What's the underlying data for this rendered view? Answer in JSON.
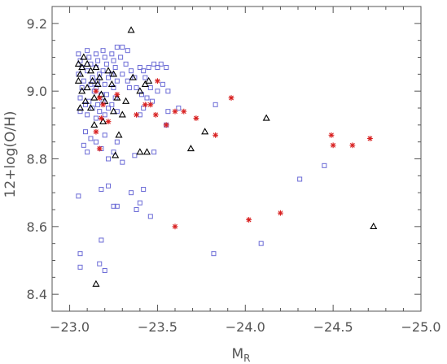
{
  "chart_data": {
    "type": "scatter",
    "xlabel": "M",
    "xlabel_sub": "R",
    "ylabel": "12+log(O/H)",
    "xlim": [
      -22.9,
      -25.0
    ],
    "ylim": [
      8.35,
      9.25
    ],
    "x_ticks": [
      -23.0,
      -23.5,
      -24.0,
      -24.5,
      -25.0
    ],
    "x_tick_labels": [
      "−23.0",
      "−23.5",
      "−24.0",
      "−24.5",
      "−25.0"
    ],
    "y_ticks": [
      8.4,
      8.6,
      8.8,
      9.0,
      9.2
    ],
    "y_tick_labels": [
      "8.4",
      "8.6",
      "8.8",
      "9.0",
      "9.2"
    ],
    "grid": false,
    "series": [
      {
        "marker": "square",
        "color": "#6b6bd6",
        "points": [
          [
            -23.05,
            9.11
          ],
          [
            -23.06,
            9.09
          ],
          [
            -23.07,
            9.07
          ],
          [
            -23.05,
            9.05
          ],
          [
            -23.08,
            9.03
          ],
          [
            -23.07,
            9.01
          ],
          [
            -23.06,
            8.98
          ],
          [
            -23.09,
            8.96
          ],
          [
            -23.06,
            8.94
          ],
          [
            -23.1,
            9.12
          ],
          [
            -23.11,
            9.1
          ],
          [
            -23.12,
            9.08
          ],
          [
            -23.1,
            9.06
          ],
          [
            -23.13,
            9.04
          ],
          [
            -23.12,
            9.02
          ],
          [
            -23.14,
            9.0
          ],
          [
            -23.11,
            8.97
          ],
          [
            -23.13,
            8.95
          ],
          [
            -23.1,
            8.93
          ],
          [
            -23.15,
            9.11
          ],
          [
            -23.16,
            9.09
          ],
          [
            -23.15,
            9.07
          ],
          [
            -23.17,
            9.05
          ],
          [
            -23.16,
            9.03
          ],
          [
            -23.15,
            9.01
          ],
          [
            -23.18,
            8.99
          ],
          [
            -23.16,
            8.96
          ],
          [
            -23.17,
            8.94
          ],
          [
            -23.15,
            8.92
          ],
          [
            -23.19,
            9.12
          ],
          [
            -23.2,
            9.1
          ],
          [
            -23.21,
            9.08
          ],
          [
            -23.19,
            9.06
          ],
          [
            -23.22,
            9.04
          ],
          [
            -23.2,
            9.02
          ],
          [
            -23.21,
            8.99
          ],
          [
            -23.19,
            8.97
          ],
          [
            -23.22,
            8.95
          ],
          [
            -23.2,
            8.93
          ],
          [
            -23.24,
            9.11
          ],
          [
            -23.25,
            9.09
          ],
          [
            -23.26,
            9.07
          ],
          [
            -23.24,
            9.05
          ],
          [
            -23.27,
            9.03
          ],
          [
            -23.25,
            9.01
          ],
          [
            -23.26,
            8.98
          ],
          [
            -23.24,
            8.96
          ],
          [
            -23.27,
            8.94
          ],
          [
            -23.27,
            9.13
          ],
          [
            -23.3,
            9.13
          ],
          [
            -23.33,
            9.12
          ],
          [
            -23.29,
            9.1
          ],
          [
            -23.32,
            9.08
          ],
          [
            -23.3,
            9.05
          ],
          [
            -23.33,
            9.03
          ],
          [
            -23.35,
            9.06
          ],
          [
            -23.37,
            9.04
          ],
          [
            -23.34,
            9.01
          ],
          [
            -23.4,
            9.07
          ],
          [
            -23.42,
            9.06
          ],
          [
            -23.45,
            9.07
          ],
          [
            -23.48,
            9.08
          ],
          [
            -23.5,
            9.07
          ],
          [
            -23.52,
            9.08
          ],
          [
            -23.55,
            9.07
          ],
          [
            -23.43,
            9.04
          ],
          [
            -23.46,
            9.01
          ],
          [
            -23.5,
            9.0
          ],
          [
            -23.53,
            9.02
          ],
          [
            -23.56,
            9.0
          ],
          [
            -23.38,
            9.01
          ],
          [
            -23.41,
            8.99
          ],
          [
            -23.44,
            8.98
          ],
          [
            -23.47,
            8.97
          ],
          [
            -23.42,
            8.95
          ],
          [
            -23.4,
            8.93
          ],
          [
            -23.09,
            8.88
          ],
          [
            -23.12,
            8.86
          ],
          [
            -23.08,
            8.84
          ],
          [
            -23.15,
            8.85
          ],
          [
            -23.2,
            8.87
          ],
          [
            -23.27,
            8.85
          ],
          [
            -23.25,
            8.82
          ],
          [
            -23.22,
            8.8
          ],
          [
            -23.1,
            8.82
          ],
          [
            -23.18,
            8.83
          ],
          [
            -23.3,
            8.79
          ],
          [
            -23.37,
            8.81
          ],
          [
            -23.48,
            8.82
          ],
          [
            -23.55,
            8.9
          ],
          [
            -23.56,
            8.94
          ],
          [
            -23.62,
            8.95
          ],
          [
            -23.83,
            8.96
          ],
          [
            -23.05,
            8.69
          ],
          [
            -23.18,
            8.71
          ],
          [
            -23.22,
            8.72
          ],
          [
            -23.25,
            8.66
          ],
          [
            -23.27,
            8.66
          ],
          [
            -23.35,
            8.7
          ],
          [
            -23.42,
            8.71
          ],
          [
            -23.4,
            8.67
          ],
          [
            -23.38,
            8.65
          ],
          [
            -23.46,
            8.63
          ],
          [
            -23.06,
            8.52
          ],
          [
            -23.06,
            8.48
          ],
          [
            -23.17,
            8.49
          ],
          [
            -23.18,
            8.56
          ],
          [
            -23.2,
            8.47
          ],
          [
            -23.82,
            8.52
          ],
          [
            -24.09,
            8.55
          ],
          [
            -24.31,
            8.74
          ],
          [
            -24.45,
            8.78
          ]
        ]
      },
      {
        "marker": "triangle",
        "color": "#000000",
        "points": [
          [
            -23.05,
            9.08
          ],
          [
            -23.06,
            9.05
          ],
          [
            -23.05,
            9.03
          ],
          [
            -23.07,
            9.07
          ],
          [
            -23.08,
            9.1
          ],
          [
            -23.07,
            9.0
          ],
          [
            -23.09,
            8.97
          ],
          [
            -23.06,
            8.95
          ],
          [
            -23.1,
            9.08
          ],
          [
            -23.12,
            9.06
          ],
          [
            -23.13,
            9.03
          ],
          [
            -23.1,
            9.01
          ],
          [
            -23.14,
            8.98
          ],
          [
            -23.12,
            8.95
          ],
          [
            -23.15,
            9.07
          ],
          [
            -23.17,
            9.04
          ],
          [
            -23.16,
            9.02
          ],
          [
            -23.18,
            8.99
          ],
          [
            -23.2,
            8.97
          ],
          [
            -23.22,
            9.06
          ],
          [
            -23.25,
            9.05
          ],
          [
            -23.24,
            9.02
          ],
          [
            -23.27,
            8.98
          ],
          [
            -23.25,
            8.94
          ],
          [
            -23.3,
            8.93
          ],
          [
            -23.32,
            8.97
          ],
          [
            -23.36,
            9.04
          ],
          [
            -23.4,
            9.0
          ],
          [
            -23.43,
            9.02
          ],
          [
            -23.45,
            9.03
          ],
          [
            -23.35,
            9.18
          ],
          [
            -23.26,
            8.81
          ],
          [
            -23.4,
            8.82
          ],
          [
            -23.44,
            8.82
          ],
          [
            -23.69,
            8.83
          ],
          [
            -23.77,
            8.88
          ],
          [
            -24.12,
            8.92
          ],
          [
            -23.15,
            8.43
          ],
          [
            -24.73,
            8.6
          ],
          [
            -23.14,
            8.9
          ],
          [
            -23.28,
            8.87
          ],
          [
            -23.19,
            8.91
          ]
        ]
      },
      {
        "marker": "asterisk",
        "color": "#d82020",
        "points": [
          [
            -23.15,
            9.0
          ],
          [
            -23.17,
            8.98
          ],
          [
            -23.19,
            8.96
          ],
          [
            -23.18,
            8.92
          ],
          [
            -23.15,
            8.88
          ],
          [
            -23.17,
            8.83
          ],
          [
            -23.22,
            8.91
          ],
          [
            -23.27,
            8.99
          ],
          [
            -23.38,
            8.93
          ],
          [
            -23.43,
            8.96
          ],
          [
            -23.46,
            8.96
          ],
          [
            -23.5,
            9.03
          ],
          [
            -23.49,
            8.93
          ],
          [
            -23.55,
            8.9
          ],
          [
            -23.6,
            8.94
          ],
          [
            -23.65,
            8.94
          ],
          [
            -23.72,
            8.92
          ],
          [
            -23.83,
            8.87
          ],
          [
            -23.92,
            8.98
          ],
          [
            -23.6,
            8.6
          ],
          [
            -24.02,
            8.62
          ],
          [
            -24.2,
            8.64
          ],
          [
            -24.49,
            8.87
          ],
          [
            -24.5,
            8.84
          ],
          [
            -24.61,
            8.84
          ],
          [
            -24.71,
            8.86
          ]
        ]
      }
    ]
  }
}
